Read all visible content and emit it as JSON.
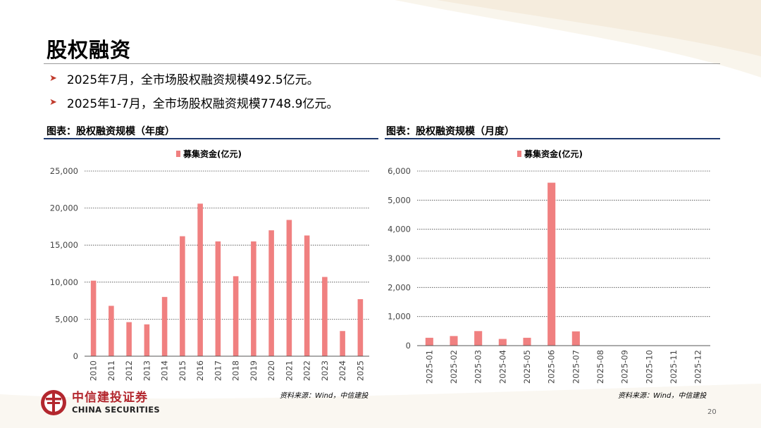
{
  "slide": {
    "title": "股权融资",
    "bullets": [
      "2025年7月，全市场股权融资规模492.5亿元。",
      "2025年1-7月，全市场股权融资规模7748.9亿元。"
    ],
    "page_number": "20",
    "bullet_icon": "arrow-right-icon"
  },
  "logo": {
    "name_cn": "中信建投证券",
    "name_en": "CHINA SECURITIES",
    "color": "#b3272e"
  },
  "chart_data": [
    {
      "type": "bar",
      "caption": "图表：股权融资规模（年度）",
      "legend": "募集资金(亿元)",
      "legend_position": "top",
      "categories": [
        "2010",
        "2011",
        "2012",
        "2013",
        "2014",
        "2015",
        "2016",
        "2017",
        "2018",
        "2019",
        "2020",
        "2021",
        "2022",
        "2023",
        "2024",
        "2025"
      ],
      "series": [
        {
          "name": "募集资金(亿元)",
          "values": [
            10200,
            6800,
            4600,
            4300,
            8000,
            16200,
            20600,
            15500,
            10800,
            15500,
            17000,
            18400,
            16300,
            10700,
            3400,
            7700
          ]
        }
      ],
      "ylim": [
        0,
        25000
      ],
      "yticks": [
        "0",
        "5,000",
        "10,000",
        "15,000",
        "20,000",
        "25,000"
      ],
      "grid": true,
      "color": "#f08080",
      "source": "资料来源：Wind，中信建投"
    },
    {
      "type": "bar",
      "caption": "图表：股权融资规模（月度）",
      "legend": "募集资金(亿元)",
      "legend_position": "top",
      "categories": [
        "2025-01",
        "2025-02",
        "2025-03",
        "2025-04",
        "2025-05",
        "2025-06",
        "2025-07",
        "2025-08",
        "2025-09",
        "2025-10",
        "2025-11",
        "2025-12"
      ],
      "series": [
        {
          "name": "募集资金(亿元)",
          "values": [
            270,
            330,
            500,
            230,
            270,
            5600,
            490,
            0,
            0,
            0,
            0,
            0
          ]
        }
      ],
      "ylim": [
        0,
        6000
      ],
      "yticks": [
        "0",
        "1,000",
        "2,000",
        "3,000",
        "4,000",
        "5,000",
        "6,000"
      ],
      "grid": true,
      "color": "#f08080",
      "source": "资料来源：Wind，中信建投"
    }
  ]
}
